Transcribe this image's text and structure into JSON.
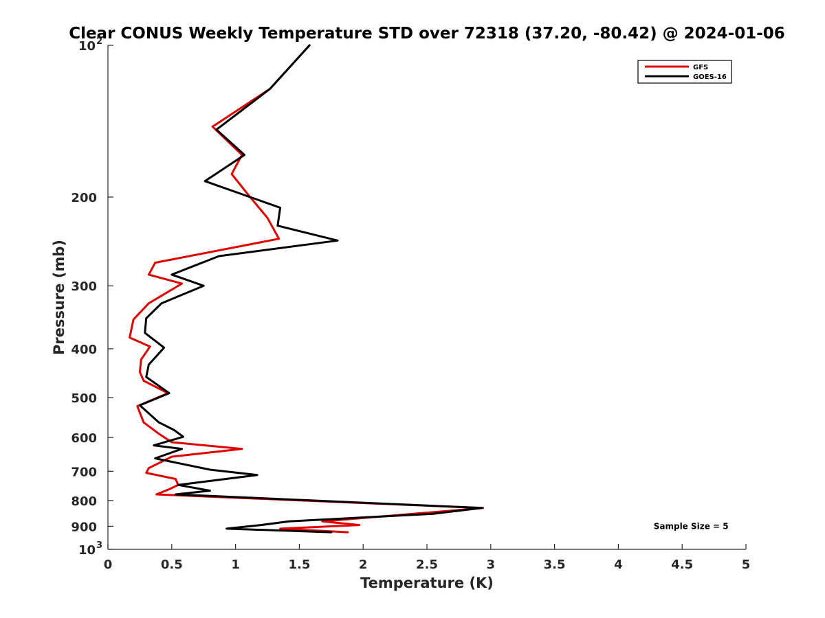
{
  "chart_data": {
    "type": "line",
    "title": "Clear CONUS Weekly Temperature STD over 72318 (37.20, -80.42) @ 2024-01-06",
    "xlabel": "Temperature (K)",
    "ylabel": "Pressure (mb)",
    "xlim": [
      0,
      5
    ],
    "ylim": [
      1000,
      100
    ],
    "y_scale": "log",
    "y_reversed": true,
    "grid": false,
    "legend_position": "top-right",
    "x_ticks": [
      {
        "value": 0,
        "label": "0"
      },
      {
        "value": 0.5,
        "label": "0.5"
      },
      {
        "value": 1,
        "label": "1"
      },
      {
        "value": 1.5,
        "label": "1.5"
      },
      {
        "value": 2,
        "label": "2"
      },
      {
        "value": 2.5,
        "label": "2.5"
      },
      {
        "value": 3,
        "label": "3"
      },
      {
        "value": 3.5,
        "label": "3.5"
      },
      {
        "value": 4,
        "label": "4"
      },
      {
        "value": 4.5,
        "label": "4.5"
      },
      {
        "value": 5,
        "label": "5"
      }
    ],
    "y_ticks": [
      {
        "value": 100,
        "base": "10",
        "exp": "2"
      },
      {
        "value": 200,
        "label": "200"
      },
      {
        "value": 300,
        "label": "300"
      },
      {
        "value": 400,
        "label": "400"
      },
      {
        "value": 500,
        "label": "500"
      },
      {
        "value": 600,
        "label": "600"
      },
      {
        "value": 700,
        "label": "700"
      },
      {
        "value": 800,
        "label": "800"
      },
      {
        "value": 900,
        "label": "900"
      },
      {
        "value": 1000,
        "base": "10",
        "exp": "3"
      }
    ],
    "series": [
      {
        "name": "GFS",
        "color": "#e00000",
        "points": [
          [
            1.58,
            100
          ],
          [
            1.27,
            122
          ],
          [
            0.82,
            145
          ],
          [
            1.05,
            165
          ],
          [
            0.97,
            180
          ],
          [
            1.1,
            198
          ],
          [
            1.25,
            220
          ],
          [
            1.34,
            242
          ],
          [
            0.37,
            270
          ],
          [
            0.32,
            285
          ],
          [
            0.58,
            297
          ],
          [
            0.32,
            325
          ],
          [
            0.2,
            350
          ],
          [
            0.17,
            380
          ],
          [
            0.33,
            396
          ],
          [
            0.26,
            420
          ],
          [
            0.25,
            445
          ],
          [
            0.28,
            463
          ],
          [
            0.47,
            490
          ],
          [
            0.23,
            520
          ],
          [
            0.28,
            560
          ],
          [
            0.4,
            590
          ],
          [
            0.5,
            613
          ],
          [
            1.05,
            632
          ],
          [
            0.5,
            655
          ],
          [
            0.32,
            690
          ],
          [
            0.3,
            705
          ],
          [
            0.53,
            725
          ],
          [
            0.55,
            745
          ],
          [
            0.48,
            760
          ],
          [
            0.38,
            778
          ],
          [
            2.94,
            828
          ],
          [
            1.68,
            880
          ],
          [
            1.97,
            895
          ],
          [
            1.35,
            910
          ],
          [
            1.88,
            925
          ]
        ]
      },
      {
        "name": "GOES-16",
        "color": "#000000",
        "points": [
          [
            1.58,
            100
          ],
          [
            1.27,
            122
          ],
          [
            0.85,
            147
          ],
          [
            1.07,
            165
          ],
          [
            0.76,
            186
          ],
          [
            1.35,
            210
          ],
          [
            1.33,
            228
          ],
          [
            1.8,
            244
          ],
          [
            0.87,
            262
          ],
          [
            0.5,
            285
          ],
          [
            0.75,
            300
          ],
          [
            0.42,
            325
          ],
          [
            0.3,
            348
          ],
          [
            0.29,
            372
          ],
          [
            0.44,
            398
          ],
          [
            0.32,
            430
          ],
          [
            0.3,
            455
          ],
          [
            0.48,
            490
          ],
          [
            0.25,
            518
          ],
          [
            0.4,
            560
          ],
          [
            0.52,
            580
          ],
          [
            0.59,
            598
          ],
          [
            0.36,
            622
          ],
          [
            0.58,
            632
          ],
          [
            0.37,
            660
          ],
          [
            0.8,
            695
          ],
          [
            1.17,
            712
          ],
          [
            0.55,
            745
          ],
          [
            0.8,
            765
          ],
          [
            0.53,
            778
          ],
          [
            2.93,
            828
          ],
          [
            2.55,
            850
          ],
          [
            1.42,
            880
          ],
          [
            1.2,
            895
          ],
          [
            0.93,
            910
          ],
          [
            1.75,
            925
          ]
        ]
      }
    ],
    "annotations": [
      {
        "text": "Sample Size = 5",
        "at": [
          4.57,
          900
        ]
      }
    ]
  }
}
